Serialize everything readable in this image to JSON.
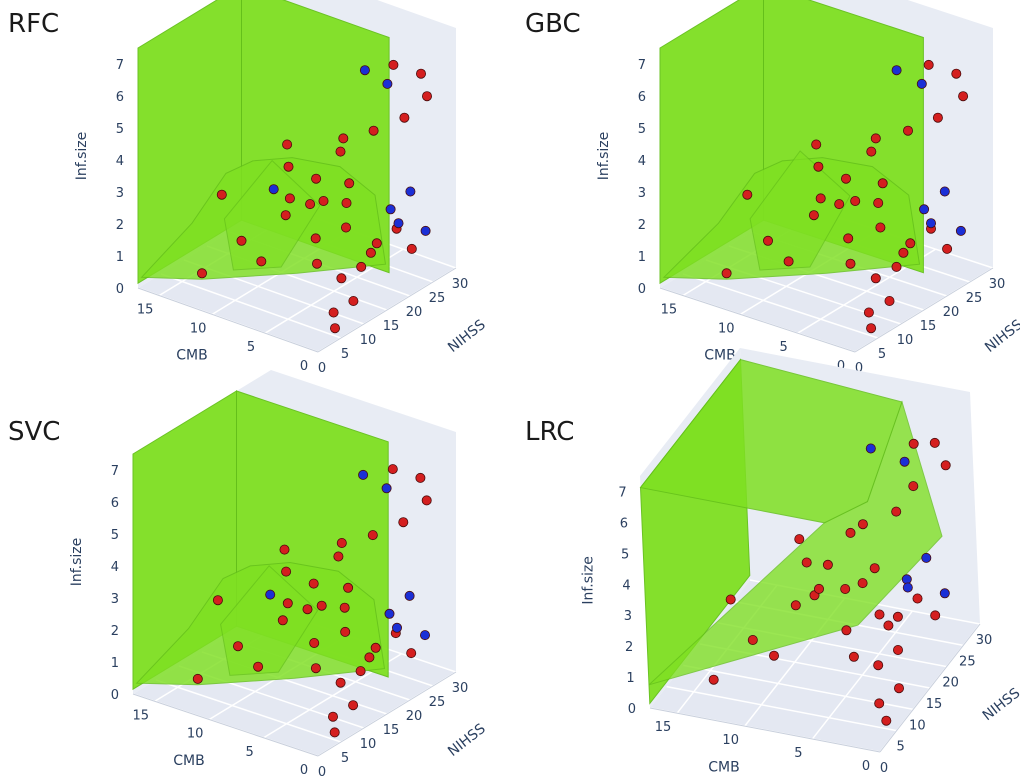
{
  "figure": {
    "colors": {
      "surface": "#7fe022",
      "surface_edge": "#64c01a",
      "wall_light": "#e8ecf4",
      "floor": "#e4e8f2",
      "grid": "#ffffff",
      "class_red": "#d41f1f",
      "class_blue": "#1b2fd6",
      "marker_edge": "#4a0c0c",
      "tick_text": "#2a3f5f"
    },
    "axes": {
      "x": {
        "title": "NIHSS",
        "ticks": [
          "0",
          "5",
          "10",
          "15",
          "20",
          "25",
          "30"
        ],
        "range": [
          0,
          30
        ]
      },
      "y": {
        "title": "CMB",
        "ticks": [
          "0",
          "5",
          "10",
          "15"
        ],
        "range": [
          0,
          17
        ]
      },
      "z": {
        "title": "Inf.size",
        "ticks": [
          "0",
          "1",
          "2",
          "3",
          "4",
          "5",
          "6",
          "7"
        ],
        "range": [
          0,
          7.5
        ]
      }
    }
  },
  "chart_data": [
    {
      "type": "scatter3d",
      "title": "RFC",
      "xlabel": "NIHSS",
      "ylabel": "CMB",
      "zlabel": "Inf.size",
      "legend": "none",
      "surface": "green decision volume",
      "series": [
        {
          "name": "red",
          "points": [
            [
              6,
              1,
              0.1
            ],
            [
              8,
              2,
              0.3
            ],
            [
              10,
              1,
              0.6
            ],
            [
              12,
              3,
              0.9
            ],
            [
              14,
              2,
              1.2
            ],
            [
              9,
              4,
              1.5
            ],
            [
              11,
              5,
              2.0
            ],
            [
              13,
              3,
              2.4
            ],
            [
              15,
              6,
              2.7
            ],
            [
              10,
              7,
              3.1
            ],
            [
              16,
              4,
              3.4
            ],
            [
              12,
              8,
              3.8
            ],
            [
              14,
              9,
              4.2
            ],
            [
              17,
              5,
              4.6
            ],
            [
              19,
              3,
              4.9
            ],
            [
              21,
              2,
              6.9
            ],
            [
              22,
              4,
              1.0
            ],
            [
              24,
              3,
              1.4
            ],
            [
              20,
              6,
              2.2
            ],
            [
              18,
              8,
              2.9
            ],
            [
              23,
              5,
              0.5
            ],
            [
              25,
              2,
              0.8
            ],
            [
              16,
              10,
              1.7
            ],
            [
              13,
              11,
              0.4
            ],
            [
              11,
              12,
              1.1
            ],
            [
              9,
              13,
              2.6
            ],
            [
              7,
              14,
              0.2
            ],
            [
              19,
              9,
              1.9
            ],
            [
              21,
              7,
              3.6
            ],
            [
              26,
              1,
              5.6
            ],
            [
              27,
              2,
              6.1
            ],
            [
              28,
              4,
              4.4
            ]
          ]
        },
        {
          "name": "blue",
          "points": [
            [
              22,
              3,
              6.1
            ],
            [
              18,
              12,
              2.1
            ],
            [
              25,
              4,
              1.8
            ],
            [
              27,
              3,
              2.3
            ],
            [
              28,
              2,
              1.1
            ],
            [
              29,
              5,
              0.9
            ],
            [
              24,
              6,
              6.0
            ]
          ]
        }
      ]
    },
    {
      "type": "scatter3d",
      "title": "GBC",
      "xlabel": "NIHSS",
      "ylabel": "CMB",
      "zlabel": "Inf.size",
      "legend": "none",
      "surface": "green decision volume",
      "series": [
        {
          "name": "red",
          "points": [
            [
              6,
              1,
              0.1
            ],
            [
              8,
              2,
              0.3
            ],
            [
              10,
              1,
              0.6
            ],
            [
              12,
              3,
              0.9
            ],
            [
              14,
              2,
              1.2
            ],
            [
              9,
              4,
              1.5
            ],
            [
              11,
              5,
              2.0
            ],
            [
              13,
              3,
              2.4
            ],
            [
              15,
              6,
              2.7
            ],
            [
              10,
              7,
              3.1
            ],
            [
              16,
              4,
              3.4
            ],
            [
              12,
              8,
              3.8
            ],
            [
              14,
              9,
              4.2
            ],
            [
              17,
              5,
              4.6
            ],
            [
              19,
              3,
              4.9
            ],
            [
              21,
              2,
              6.9
            ],
            [
              22,
              4,
              1.0
            ],
            [
              24,
              3,
              1.4
            ],
            [
              20,
              6,
              2.2
            ],
            [
              18,
              8,
              2.9
            ],
            [
              23,
              5,
              0.5
            ],
            [
              25,
              2,
              0.8
            ],
            [
              16,
              10,
              1.7
            ],
            [
              13,
              11,
              0.4
            ],
            [
              11,
              12,
              1.1
            ],
            [
              9,
              13,
              2.6
            ],
            [
              7,
              14,
              0.2
            ],
            [
              19,
              9,
              1.9
            ],
            [
              21,
              7,
              3.6
            ],
            [
              26,
              1,
              5.6
            ],
            [
              27,
              2,
              6.1
            ],
            [
              28,
              4,
              4.4
            ]
          ]
        },
        {
          "name": "blue",
          "points": [
            [
              22,
              3,
              6.1
            ],
            [
              25,
              4,
              1.8
            ],
            [
              27,
              3,
              2.3
            ],
            [
              28,
              2,
              1.1
            ],
            [
              29,
              5,
              0.9
            ],
            [
              24,
              6,
              6.0
            ]
          ]
        }
      ]
    },
    {
      "type": "scatter3d",
      "title": "SVC",
      "xlabel": "NIHSS",
      "ylabel": "CMB",
      "zlabel": "Inf.size",
      "legend": "none",
      "surface": "green decision volume",
      "series": [
        {
          "name": "red",
          "points": [
            [
              6,
              1,
              0.1
            ],
            [
              8,
              2,
              0.3
            ],
            [
              10,
              1,
              0.6
            ],
            [
              12,
              3,
              0.9
            ],
            [
              14,
              2,
              1.2
            ],
            [
              9,
              4,
              1.5
            ],
            [
              11,
              5,
              2.0
            ],
            [
              13,
              3,
              2.4
            ],
            [
              15,
              6,
              2.7
            ],
            [
              10,
              7,
              3.1
            ],
            [
              16,
              4,
              3.4
            ],
            [
              12,
              8,
              3.8
            ],
            [
              14,
              9,
              4.2
            ],
            [
              17,
              5,
              4.6
            ],
            [
              19,
              3,
              4.9
            ],
            [
              21,
              2,
              6.9
            ],
            [
              22,
              4,
              1.0
            ],
            [
              24,
              3,
              1.4
            ],
            [
              20,
              6,
              2.2
            ],
            [
              18,
              8,
              2.9
            ],
            [
              23,
              5,
              0.5
            ],
            [
              25,
              2,
              0.8
            ],
            [
              16,
              10,
              1.7
            ],
            [
              13,
              11,
              0.4
            ],
            [
              11,
              12,
              1.1
            ],
            [
              9,
              13,
              2.6
            ],
            [
              7,
              14,
              0.2
            ],
            [
              19,
              9,
              1.9
            ],
            [
              21,
              7,
              3.6
            ],
            [
              26,
              1,
              5.6
            ],
            [
              27,
              2,
              6.1
            ],
            [
              28,
              4,
              4.4
            ]
          ]
        },
        {
          "name": "blue",
          "points": [
            [
              22,
              3,
              6.1
            ],
            [
              18,
              12,
              2.1
            ],
            [
              25,
              4,
              1.8
            ],
            [
              27,
              3,
              2.3
            ],
            [
              28,
              2,
              1.1
            ],
            [
              29,
              5,
              0.9
            ],
            [
              24,
              6,
              6.0
            ]
          ]
        }
      ]
    },
    {
      "type": "scatter3d",
      "title": "LRC",
      "xlabel": "NIHSS",
      "ylabel": "CMB",
      "zlabel": "Inf.size",
      "legend": "none",
      "surface": "green decision volume",
      "series": [
        {
          "name": "red",
          "points": [
            [
              6,
              1,
              0.1
            ],
            [
              8,
              2,
              0.3
            ],
            [
              10,
              1,
              0.6
            ],
            [
              12,
              3,
              0.9
            ],
            [
              14,
              2,
              1.2
            ],
            [
              9,
              4,
              1.5
            ],
            [
              11,
              5,
              2.0
            ],
            [
              13,
              3,
              2.4
            ],
            [
              15,
              6,
              2.7
            ],
            [
              10,
              7,
              3.1
            ],
            [
              16,
              4,
              3.4
            ],
            [
              12,
              8,
              3.8
            ],
            [
              14,
              9,
              4.2
            ],
            [
              17,
              5,
              4.6
            ],
            [
              19,
              3,
              4.9
            ],
            [
              21,
              2,
              6.9
            ],
            [
              22,
              4,
              1.0
            ],
            [
              24,
              3,
              1.4
            ],
            [
              20,
              6,
              2.2
            ],
            [
              18,
              8,
              2.9
            ],
            [
              23,
              5,
              0.5
            ],
            [
              25,
              2,
              0.8
            ],
            [
              16,
              10,
              1.7
            ],
            [
              13,
              11,
              0.4
            ],
            [
              11,
              12,
              1.1
            ],
            [
              9,
              13,
              2.6
            ],
            [
              7,
              14,
              0.2
            ],
            [
              19,
              9,
              1.9
            ],
            [
              21,
              7,
              3.6
            ],
            [
              26,
              1,
              5.6
            ],
            [
              27,
              2,
              6.1
            ],
            [
              28,
              4,
              4.4
            ]
          ]
        },
        {
          "name": "blue",
          "points": [
            [
              22,
              3,
              6.1
            ],
            [
              25,
              4,
              1.8
            ],
            [
              27,
              3,
              2.3
            ],
            [
              28,
              2,
              1.1
            ],
            [
              29,
              5,
              0.9
            ],
            [
              24,
              6,
              6.0
            ]
          ]
        }
      ]
    }
  ]
}
